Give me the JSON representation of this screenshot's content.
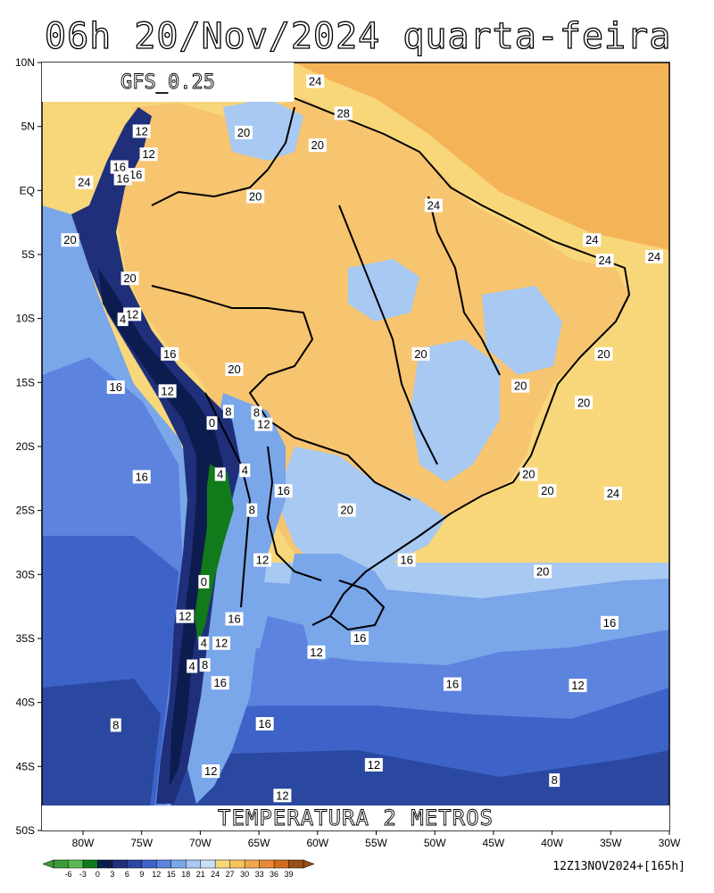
{
  "header": {
    "title": "06h 20/Nov/2024 quarta-feira",
    "model": "GFS_0.25",
    "variable": "TEMPERATURA 2 METROS",
    "init_info": "12Z13NOV2024+[165h]"
  },
  "axes": {
    "lat_labels": [
      "10N",
      "5N",
      "EQ",
      "5S",
      "10S",
      "15S",
      "20S",
      "25S",
      "30S",
      "35S",
      "40S",
      "45S",
      "50S"
    ],
    "lon_labels": [
      "80W",
      "75W",
      "70W",
      "65W",
      "60W",
      "55W",
      "50W",
      "45W",
      "40W",
      "35W",
      "30W"
    ]
  },
  "colorbar": {
    "labels": [
      "-6",
      "-3",
      "0",
      "3",
      "6",
      "9",
      "12",
      "15",
      "18",
      "21",
      "24",
      "27",
      "30",
      "33",
      "36",
      "39"
    ],
    "colors": [
      "#3d9a38",
      "#5ab94c",
      "#117a1a",
      "#0d1c4e",
      "#1f2f7a",
      "#2a48a0",
      "#3d62c8",
      "#5c83de",
      "#7aa6ea",
      "#a7c9f2",
      "#c7dff6",
      "#f7d77a",
      "#f5c260",
      "#f0a752",
      "#e8883a",
      "#cf6a1f",
      "#9c4e14"
    ]
  },
  "contour_labels": [
    {
      "text": "24",
      "lon": -60.2,
      "lat": 8.5
    },
    {
      "text": "28",
      "lon": -57.8,
      "lat": 6.0
    },
    {
      "text": "12",
      "lon": -75.0,
      "lat": 4.6
    },
    {
      "text": "20",
      "lon": -66.3,
      "lat": 4.5
    },
    {
      "text": "20",
      "lon": -60.0,
      "lat": 3.5
    },
    {
      "text": "12",
      "lon": -74.4,
      "lat": 2.8
    },
    {
      "text": "16",
      "lon": -76.9,
      "lat": 1.8
    },
    {
      "text": "16",
      "lon": -75.5,
      "lat": 1.2
    },
    {
      "text": "16",
      "lon": -76.6,
      "lat": 0.9
    },
    {
      "text": "24",
      "lon": -79.9,
      "lat": 0.6
    },
    {
      "text": "20",
      "lon": -65.3,
      "lat": -0.5
    },
    {
      "text": "24",
      "lon": -50.1,
      "lat": -1.2
    },
    {
      "text": "20",
      "lon": -81.1,
      "lat": -3.9
    },
    {
      "text": "24",
      "lon": -36.6,
      "lat": -3.9
    },
    {
      "text": "24",
      "lon": -35.5,
      "lat": -5.5
    },
    {
      "text": "24",
      "lon": -31.3,
      "lat": -5.2
    },
    {
      "text": "20",
      "lon": -76.0,
      "lat": -6.9
    },
    {
      "text": "12",
      "lon": -75.8,
      "lat": -9.7
    },
    {
      "text": "4",
      "lon": -76.6,
      "lat": -10.1
    },
    {
      "text": "16",
      "lon": -72.6,
      "lat": -12.8
    },
    {
      "text": "20",
      "lon": -35.6,
      "lat": -12.8
    },
    {
      "text": "20",
      "lon": -51.2,
      "lat": -12.8
    },
    {
      "text": "20",
      "lon": -67.1,
      "lat": -14.0
    },
    {
      "text": "16",
      "lon": -77.2,
      "lat": -15.4
    },
    {
      "text": "12",
      "lon": -72.8,
      "lat": -15.7
    },
    {
      "text": "20",
      "lon": -42.7,
      "lat": -15.3
    },
    {
      "text": "20",
      "lon": -37.3,
      "lat": -16.6
    },
    {
      "text": "8",
      "lon": -67.6,
      "lat": -17.3
    },
    {
      "text": "8",
      "lon": -65.2,
      "lat": -17.4
    },
    {
      "text": "0",
      "lon": -69.0,
      "lat": -18.2
    },
    {
      "text": "12",
      "lon": -64.6,
      "lat": -18.3
    },
    {
      "text": "4",
      "lon": -66.2,
      "lat": -21.9
    },
    {
      "text": "4",
      "lon": -68.3,
      "lat": -22.2
    },
    {
      "text": "20",
      "lon": -42.0,
      "lat": -22.2
    },
    {
      "text": "16",
      "lon": -75.0,
      "lat": -22.4
    },
    {
      "text": "20",
      "lon": -40.4,
      "lat": -23.5
    },
    {
      "text": "16",
      "lon": -62.9,
      "lat": -23.5
    },
    {
      "text": "24",
      "lon": -34.8,
      "lat": -23.7
    },
    {
      "text": "8",
      "lon": -65.6,
      "lat": -25.0
    },
    {
      "text": "20",
      "lon": -57.5,
      "lat": -25.0
    },
    {
      "text": "12",
      "lon": -64.7,
      "lat": -28.9
    },
    {
      "text": "16",
      "lon": -52.4,
      "lat": -28.9
    },
    {
      "text": "20",
      "lon": -40.8,
      "lat": -29.8
    },
    {
      "text": "0",
      "lon": -69.7,
      "lat": -30.6
    },
    {
      "text": "12",
      "lon": -71.3,
      "lat": -33.3
    },
    {
      "text": "16",
      "lon": -67.1,
      "lat": -33.5
    },
    {
      "text": "16",
      "lon": -35.1,
      "lat": -33.8
    },
    {
      "text": "16",
      "lon": -56.4,
      "lat": -35.0
    },
    {
      "text": "4",
      "lon": -69.7,
      "lat": -35.4
    },
    {
      "text": "12",
      "lon": -68.2,
      "lat": -35.4
    },
    {
      "text": "12",
      "lon": -60.1,
      "lat": -36.1
    },
    {
      "text": "8",
      "lon": -69.6,
      "lat": -37.1
    },
    {
      "text": "4",
      "lon": -70.7,
      "lat": -37.2
    },
    {
      "text": "16",
      "lon": -68.3,
      "lat": -38.5
    },
    {
      "text": "16",
      "lon": -48.5,
      "lat": -38.6
    },
    {
      "text": "12",
      "lon": -37.8,
      "lat": -38.7
    },
    {
      "text": "8",
      "lon": -77.2,
      "lat": -41.8
    },
    {
      "text": "16",
      "lon": -64.5,
      "lat": -41.7
    },
    {
      "text": "12",
      "lon": -55.2,
      "lat": -44.9
    },
    {
      "text": "12",
      "lon": -69.1,
      "lat": -45.4
    },
    {
      "text": "8",
      "lon": -39.8,
      "lat": -46.1
    },
    {
      "text": "12",
      "lon": -63.0,
      "lat": -47.3
    }
  ]
}
